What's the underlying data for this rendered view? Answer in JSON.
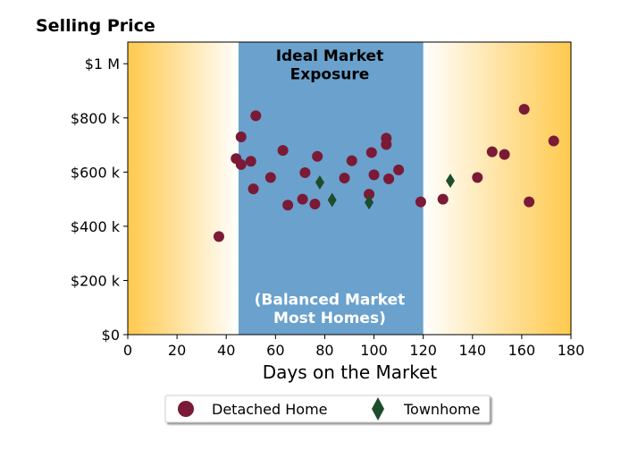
{
  "chart_data": {
    "type": "scatter",
    "title": "Selling Price",
    "xlabel": "Days on the Market",
    "ylabel": "",
    "xlim": [
      0,
      180
    ],
    "ylim": [
      0,
      1080000
    ],
    "xticks": [
      0,
      20,
      40,
      60,
      80,
      100,
      120,
      140,
      160,
      180
    ],
    "xtick_labels": [
      "0",
      "20",
      "40",
      "60",
      "80",
      "100",
      "120",
      "140",
      "160",
      "180"
    ],
    "yticks": [
      0,
      200000,
      400000,
      600000,
      800000,
      1000000
    ],
    "ytick_labels": [
      "$0",
      "$200 k",
      "$400 k",
      "$600 k",
      "$800 k",
      "$1 M"
    ],
    "grid": false,
    "legend_position": "bottom-center",
    "regions": [
      {
        "x_start": 0,
        "x_end": 45,
        "style": "gradient",
        "color": "#ffc94d"
      },
      {
        "x_start": 45,
        "x_end": 120,
        "style": "solid",
        "color": "#6aa1cd"
      },
      {
        "x_start": 120,
        "x_end": 180,
        "style": "gradient",
        "color": "#ffc94d"
      }
    ],
    "annotations": [
      {
        "text": "Ideal Market\nExposure",
        "x": 82,
        "y": 1010000,
        "style": "dark"
      },
      {
        "text": "(Balanced Market\nMost Homes)",
        "x": 82,
        "y": 110000,
        "style": "light"
      }
    ],
    "series": [
      {
        "name": "Detached Home",
        "marker": "circle",
        "color": "#7a1a36",
        "points": [
          [
            37,
            362000
          ],
          [
            44,
            650000
          ],
          [
            46,
            730000
          ],
          [
            46,
            628000
          ],
          [
            50,
            640000
          ],
          [
            51,
            538000
          ],
          [
            52,
            808000
          ],
          [
            58,
            580000
          ],
          [
            63,
            680000
          ],
          [
            65,
            478000
          ],
          [
            71,
            500000
          ],
          [
            72,
            598000
          ],
          [
            76,
            482000
          ],
          [
            77,
            658000
          ],
          [
            88,
            578000
          ],
          [
            91,
            642000
          ],
          [
            98,
            518000
          ],
          [
            99,
            672000
          ],
          [
            100,
            590000
          ],
          [
            105,
            725000
          ],
          [
            105,
            702000
          ],
          [
            106,
            575000
          ],
          [
            110,
            608000
          ],
          [
            119,
            490000
          ],
          [
            128,
            500000
          ],
          [
            142,
            580000
          ],
          [
            148,
            675000
          ],
          [
            153,
            665000
          ],
          [
            161,
            832000
          ],
          [
            163,
            490000
          ],
          [
            173,
            715000
          ]
        ]
      },
      {
        "name": "Townhome",
        "marker": "diamond",
        "color": "#1e4d2b",
        "points": [
          [
            78,
            562000
          ],
          [
            83,
            497000
          ],
          [
            98,
            488000
          ],
          [
            131,
            568000
          ]
        ]
      }
    ]
  }
}
